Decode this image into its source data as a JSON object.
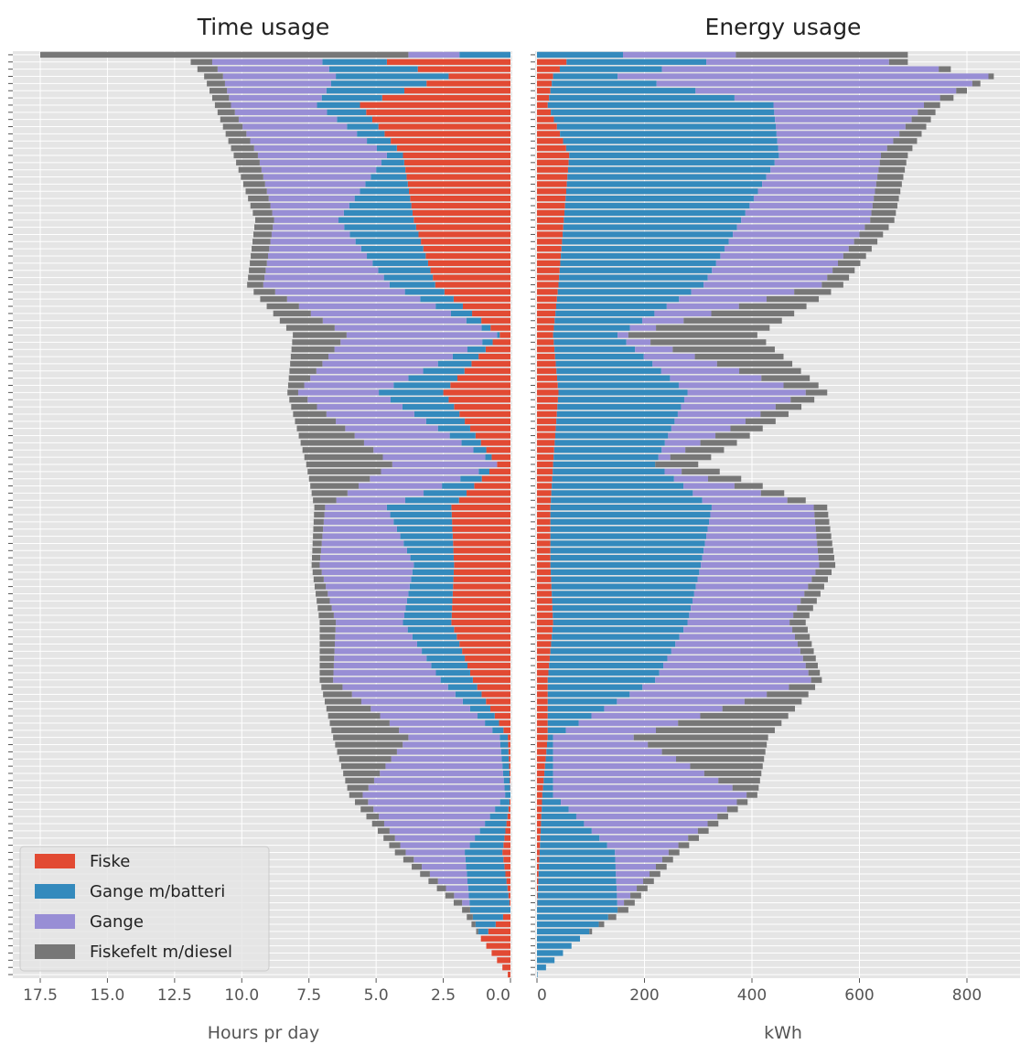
{
  "chart_data": [
    {
      "type": "bar",
      "orientation": "horizontal-stacked",
      "title": "Time usage",
      "xlabel": "Hours pr day",
      "xlim": [
        17.5,
        0
      ],
      "xticks": [
        "17.5",
        "15.0",
        "12.5",
        "10.0",
        "7.5",
        "5.0",
        "2.5",
        "0.0"
      ],
      "xtick_values": [
        17.5,
        15,
        12.5,
        10,
        7.5,
        5,
        2.5,
        0
      ],
      "grid": true,
      "legend_position": "lower-left",
      "series": [
        {
          "name": "Fiske",
          "color": "#e24a33"
        },
        {
          "name": "Gange m/batteri",
          "color": "#348abd"
        },
        {
          "name": "Gange",
          "color": "#988ed5"
        },
        {
          "name": "Fiskefelt m/diesel",
          "color": "#777777"
        }
      ],
      "rows": 129,
      "sampled_rows": [
        {
          "row": 1,
          "values": [
            0,
            1.9,
            1.9,
            13.7
          ]
        },
        {
          "row": 2,
          "values": [
            4.6,
            2.4,
            4.1,
            0.8
          ]
        },
        {
          "row": 4,
          "values": [
            2.3,
            4.2,
            4.2,
            0.7
          ]
        },
        {
          "row": 8,
          "values": [
            5.6,
            1.6,
            3.2,
            0.6
          ]
        },
        {
          "row": 15,
          "values": [
            4.0,
            0.6,
            4.8,
            0.9
          ]
        },
        {
          "row": 24,
          "values": [
            3.6,
            2.8,
            2.4,
            0.7
          ]
        },
        {
          "row": 33,
          "values": [
            2.8,
            1.7,
            4.7,
            0.6
          ]
        },
        {
          "row": 40,
          "values": [
            0.4,
            0.1,
            5.6,
            2.0
          ]
        },
        {
          "row": 48,
          "values": [
            2.5,
            2.4,
            3.0,
            0.4
          ]
        },
        {
          "row": 58,
          "values": [
            0.5,
            0,
            3.9,
            3.2
          ]
        },
        {
          "row": 64,
          "values": [
            2.2,
            2.4,
            2.3,
            0.4
          ]
        },
        {
          "row": 72,
          "values": [
            2.1,
            1.5,
            3.5,
            0.3
          ]
        },
        {
          "row": 80,
          "values": [
            2.2,
            1.8,
            2.5,
            0.6
          ]
        },
        {
          "row": 88,
          "values": [
            1.4,
            1.2,
            4.0,
            0.5
          ]
        },
        {
          "row": 96,
          "values": [
            0.1,
            0.3,
            3.4,
            2.8
          ]
        },
        {
          "row": 104,
          "values": [
            0,
            0.2,
            5.3,
            0.5
          ]
        },
        {
          "row": 112,
          "values": [
            0.3,
            1.4,
            2.2,
            0.4
          ]
        },
        {
          "row": 120,
          "values": [
            0,
            1.5,
            0,
            0.3
          ]
        },
        {
          "row": 124,
          "values": [
            1.1,
            0,
            0,
            0
          ]
        },
        {
          "row": 129,
          "values": [
            0.1,
            0,
            0,
            0
          ]
        }
      ]
    },
    {
      "type": "bar",
      "orientation": "horizontal-stacked",
      "title": "Energy usage",
      "xlabel": "kWh",
      "xlim": [
        0,
        900
      ],
      "xticks": [
        "0",
        "200",
        "400",
        "600",
        "800"
      ],
      "xtick_values": [
        0,
        200,
        400,
        600,
        800
      ],
      "grid": true,
      "series": [
        {
          "name": "Fiske",
          "color": "#e24a33"
        },
        {
          "name": "Gange m/batteri",
          "color": "#348abd"
        },
        {
          "name": "Gange",
          "color": "#988ed5"
        },
        {
          "name": "Fiskefelt m/diesel",
          "color": "#777777"
        }
      ],
      "rows": 129,
      "sampled_rows": [
        {
          "row": 1,
          "values": [
            0,
            160,
            210,
            320
          ]
        },
        {
          "row": 2,
          "values": [
            55,
            260,
            340,
            35
          ]
        },
        {
          "row": 4,
          "values": [
            30,
            120,
            690,
            10
          ]
        },
        {
          "row": 8,
          "values": [
            20,
            420,
            280,
            30
          ]
        },
        {
          "row": 15,
          "values": [
            60,
            390,
            190,
            50
          ]
        },
        {
          "row": 24,
          "values": [
            50,
            330,
            240,
            45
          ]
        },
        {
          "row": 33,
          "values": [
            40,
            270,
            220,
            40
          ]
        },
        {
          "row": 40,
          "values": [
            30,
            120,
            20,
            240
          ]
        },
        {
          "row": 48,
          "values": [
            40,
            240,
            220,
            40
          ]
        },
        {
          "row": 58,
          "values": [
            30,
            190,
            0,
            80
          ]
        },
        {
          "row": 64,
          "values": [
            25,
            300,
            190,
            25
          ]
        },
        {
          "row": 72,
          "values": [
            25,
            280,
            220,
            30
          ]
        },
        {
          "row": 80,
          "values": [
            30,
            250,
            190,
            30
          ]
        },
        {
          "row": 88,
          "values": [
            20,
            200,
            290,
            20
          ]
        },
        {
          "row": 96,
          "values": [
            20,
            10,
            150,
            250
          ]
        },
        {
          "row": 104,
          "values": [
            10,
            20,
            360,
            20
          ]
        },
        {
          "row": 112,
          "values": [
            5,
            140,
            100,
            20
          ]
        },
        {
          "row": 120,
          "values": [
            0,
            150,
            0,
            20
          ]
        },
        {
          "row": 124,
          "values": [
            0,
            80,
            0,
            0
          ]
        },
        {
          "row": 129,
          "values": [
            0,
            1,
            0,
            0
          ]
        }
      ]
    }
  ]
}
